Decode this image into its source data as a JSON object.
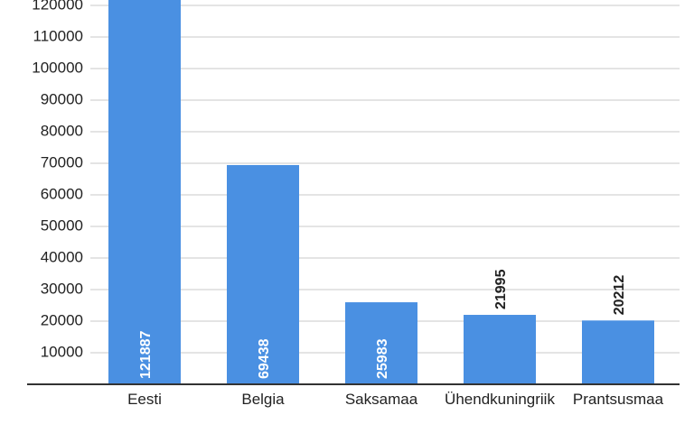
{
  "chart_data": {
    "type": "bar",
    "categories": [
      "Eesti",
      "Belgia",
      "Saksamaa",
      "Ühendkuningriik",
      "Prantsusmaa"
    ],
    "values": [
      121887,
      69438,
      25983,
      21995,
      20212
    ],
    "data_labels": [
      "121887",
      "69438",
      "25983",
      "21995",
      "20212"
    ],
    "yticks": [
      "10000",
      "20000",
      "30000",
      "40000",
      "50000",
      "60000",
      "70000",
      "80000",
      "90000",
      "100000",
      "110000",
      "120000"
    ],
    "ylim": [
      0,
      122000
    ],
    "grid": true,
    "bar_color": "#4a90e2"
  }
}
